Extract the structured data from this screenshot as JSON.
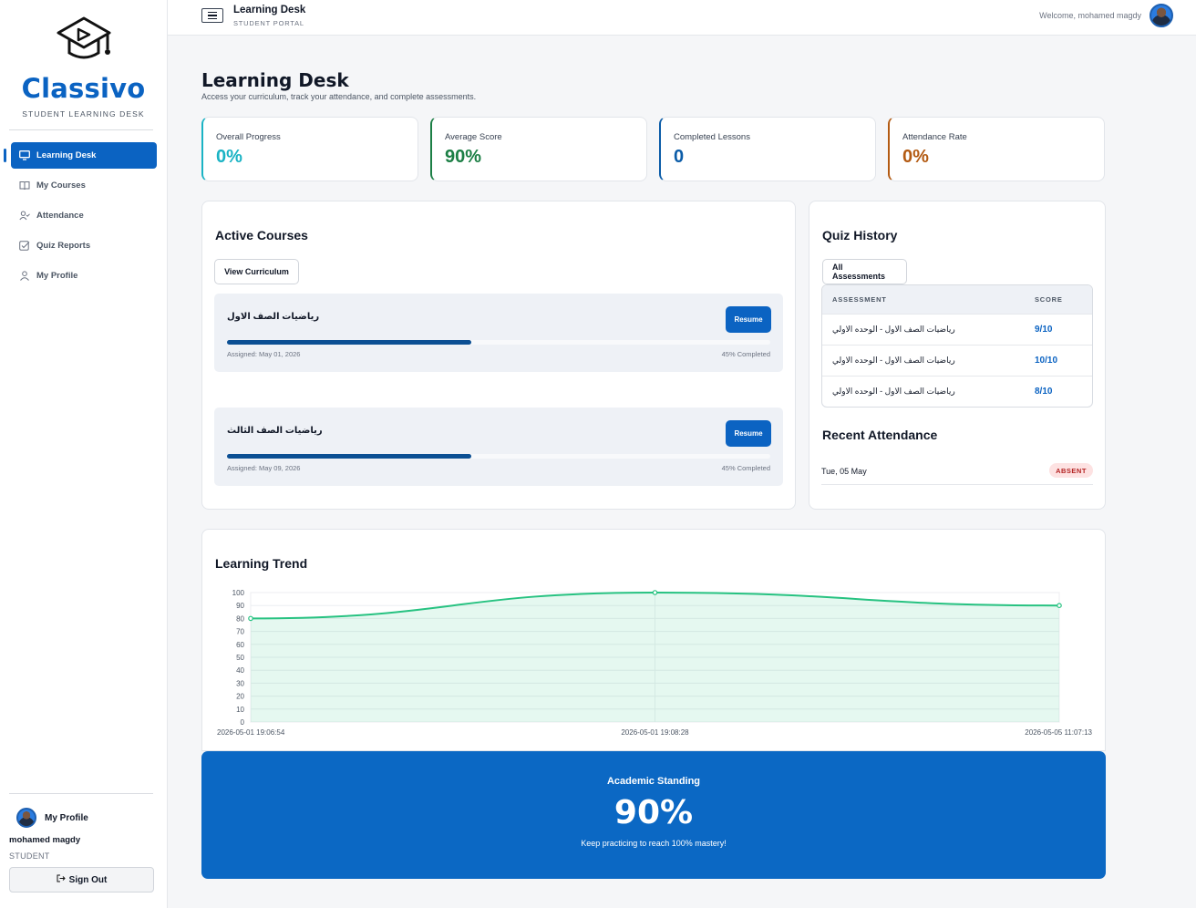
{
  "sidebar": {
    "brand": "Classivo",
    "brand_sub": "STUDENT LEARNING DESK",
    "items": [
      {
        "label": "Learning Desk",
        "icon": "monitor-icon",
        "active": true
      },
      {
        "label": "My Courses",
        "icon": "book-icon"
      },
      {
        "label": "Attendance",
        "icon": "user-check-icon"
      },
      {
        "label": "Quiz Reports",
        "icon": "checkbox-icon"
      },
      {
        "label": "My Profile",
        "icon": "user-icon"
      }
    ],
    "profile": {
      "title": "My Profile",
      "name": "mohamed magdy",
      "role": "STUDENT",
      "signout": "Sign Out"
    }
  },
  "topbar": {
    "title": "Learning Desk",
    "subtitle": "STUDENT PORTAL",
    "welcome": "Welcome, mohamed magdy"
  },
  "page": {
    "title": "Learning Desk",
    "subtitle": "Access your curriculum, track your attendance, and complete assessments."
  },
  "stats": [
    {
      "label": "Overall Progress",
      "value": "0%",
      "color": "#1ab3c4"
    },
    {
      "label": "Average Score",
      "value": "90%",
      "color": "#1c7f45"
    },
    {
      "label": "Completed Lessons",
      "value": "0",
      "color": "#0b5ca8"
    },
    {
      "label": "Attendance Rate",
      "value": "0%",
      "color": "#b35a12"
    }
  ],
  "active_courses": {
    "title": "Active Courses",
    "button": "View Curriculum",
    "courses": [
      {
        "name": "رياضيات الصف الاول",
        "resume": "Resume",
        "progress": 45,
        "assigned": "Assigned: May 01, 2026",
        "completed": "45% Completed"
      },
      {
        "name": "رياضيات الصف الثالث",
        "resume": "Resume",
        "progress": 45,
        "assigned": "Assigned: May 09, 2026",
        "completed": "45% Completed"
      }
    ]
  },
  "quiz_history": {
    "title": "Quiz History",
    "button": "All Assessments",
    "columns": [
      "ASSESSMENT",
      "SCORE"
    ],
    "rows": [
      {
        "assessment": "رياضيات الصف الاول - الوحده الاولي",
        "score": "9/10"
      },
      {
        "assessment": "رياضيات الصف الاول - الوحده الاولي",
        "score": "10/10"
      },
      {
        "assessment": "رياضيات الصف الاول - الوحده الاولي",
        "score": "8/10"
      }
    ]
  },
  "recent_attendance": {
    "title": "Recent Attendance",
    "rows": [
      {
        "date": "Tue, 05 May",
        "status": "ABSENT"
      }
    ]
  },
  "learning_trend": {
    "title": "Learning Trend"
  },
  "chart_data": {
    "type": "area",
    "x": [
      "2026-05-01 19:06:54",
      "2026-05-01 19:08:28",
      "2026-05-05 11:07:13"
    ],
    "values": [
      80,
      100,
      90
    ],
    "ylim": [
      0,
      100
    ],
    "yticks": [
      0,
      10,
      20,
      30,
      40,
      50,
      60,
      70,
      80,
      90,
      100
    ],
    "grid": true,
    "color": "#27c281",
    "title": "",
    "xlabel": "",
    "ylabel": ""
  },
  "standing": {
    "title": "Academic Standing",
    "value": "90%",
    "subtitle": "Keep practicing to reach 100% mastery!"
  }
}
